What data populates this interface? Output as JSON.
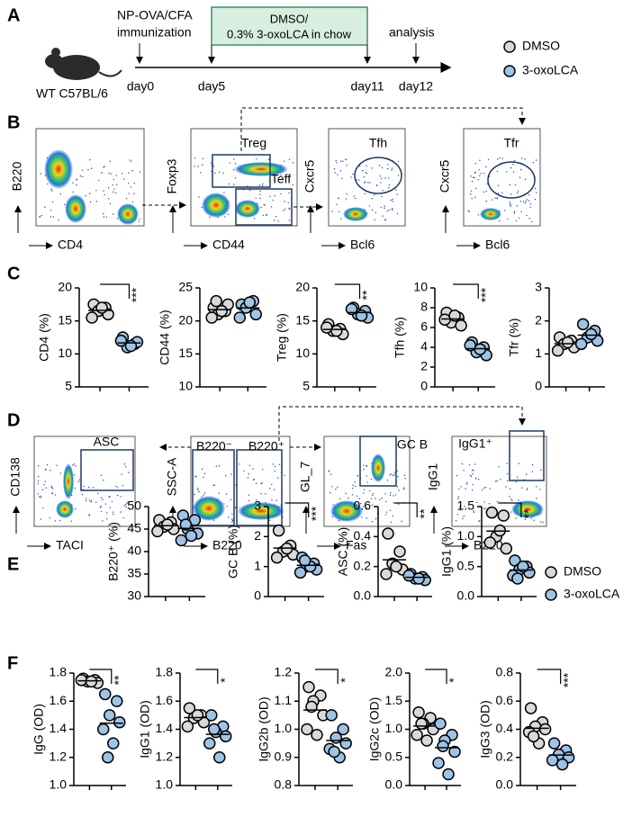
{
  "panel_labels": [
    "A",
    "B",
    "C",
    "D",
    "E",
    "F"
  ],
  "timeline": {
    "subject": "WT C57BL/6",
    "immunization": [
      "NP-OVA/CFA",
      "immunization"
    ],
    "treatment": [
      "DMSO/",
      "0.3% 3-oxoLCA in chow"
    ],
    "analysis": "analysis",
    "days": [
      "day0",
      "day5",
      "day11",
      "day12"
    ]
  },
  "legend": [
    {
      "name": "DMSO",
      "color": "#d9d9d9"
    },
    {
      "name": "3-oxoLCA",
      "color": "#9dc3e6"
    }
  ],
  "flow_b": [
    {
      "x_label": "CD4",
      "y_label": "B220"
    },
    {
      "x_label": "CD44",
      "y_label": "Foxp3",
      "gates": [
        "Treg",
        "Teff"
      ]
    },
    {
      "x_label": "Bcl6",
      "y_label": "Cxcr5",
      "gates": [
        "Tfh"
      ]
    },
    {
      "x_label": "Bcl6",
      "y_label": "Cxcr5",
      "gates": [
        "Tfr"
      ]
    }
  ],
  "flow_d": [
    {
      "x_label": "TACI",
      "y_label": "CD138",
      "gates": [
        "ASC"
      ]
    },
    {
      "x_label": "B220",
      "y_label": "SSC-A",
      "gates": [
        "B220⁻",
        "B220⁺"
      ]
    },
    {
      "x_label": "Fas",
      "y_label": "GL_7",
      "gates": [
        "GC B"
      ]
    },
    {
      "x_label": "B220",
      "y_label": "IgG1",
      "gates": [
        "IgG1⁺"
      ]
    }
  ],
  "chart_data": [
    {
      "type": "strip",
      "ylabel": "CD4 (%)",
      "ylim": [
        5,
        20
      ],
      "yticks": [
        5,
        10,
        15,
        20
      ],
      "significance": "***",
      "series": [
        {
          "color": "#d9d9d9",
          "values": [
            17.5,
            17,
            16.5,
            16,
            15.5,
            17
          ]
        },
        {
          "color": "#9dc3e6",
          "values": [
            12.5,
            11.5,
            11,
            11.8,
            12,
            11.2
          ]
        }
      ]
    },
    {
      "type": "strip",
      "ylabel": "CD44 (%)",
      "ylim": [
        10,
        25
      ],
      "yticks": [
        10,
        15,
        20,
        25
      ],
      "series": [
        {
          "color": "#d9d9d9",
          "values": [
            22,
            21.5,
            21,
            22.5,
            20.5,
            21.5,
            23
          ]
        },
        {
          "color": "#9dc3e6",
          "values": [
            22.5,
            23,
            22,
            21,
            20.5,
            22.8
          ]
        }
      ]
    },
    {
      "type": "strip",
      "ylabel": "Treg (%)",
      "ylim": [
        5,
        20
      ],
      "yticks": [
        5,
        10,
        15,
        20
      ],
      "significance": "**",
      "series": [
        {
          "color": "#d9d9d9",
          "values": [
            14.5,
            13.8,
            13.5,
            13,
            14,
            13.5
          ]
        },
        {
          "color": "#9dc3e6",
          "values": [
            17,
            16.5,
            16,
            15.5,
            16.8,
            15.8
          ]
        }
      ]
    },
    {
      "type": "strip",
      "ylabel": "Tfh (%)",
      "ylim": [
        0,
        10
      ],
      "yticks": [
        0,
        2,
        4,
        6,
        8,
        10
      ],
      "significance": "***",
      "series": [
        {
          "color": "#d9d9d9",
          "values": [
            7.5,
            7,
            6.5,
            6.2,
            6.8,
            7.2
          ]
        },
        {
          "color": "#9dc3e6",
          "values": [
            4.5,
            4,
            3.5,
            3.2,
            4.2,
            3.8
          ]
        }
      ]
    },
    {
      "type": "strip",
      "ylabel": "Tfr (%)",
      "ylim": [
        0,
        3
      ],
      "yticks": [
        0,
        1,
        2,
        3
      ],
      "series": [
        {
          "color": "#d9d9d9",
          "values": [
            1.5,
            1.4,
            1.3,
            1.2,
            1.1,
            1.35
          ]
        },
        {
          "color": "#9dc3e6",
          "values": [
            1.9,
            1.7,
            1.5,
            1.4,
            1.3,
            1.6
          ]
        }
      ]
    },
    {
      "type": "strip",
      "ylabel": "B220⁺ (%)",
      "ylim": [
        30,
        50
      ],
      "yticks": [
        30,
        35,
        40,
        45,
        50
      ],
      "series": [
        {
          "color": "#d9d9d9",
          "values": [
            47,
            46.5,
            45.5,
            45,
            44.5,
            46
          ]
        },
        {
          "color": "#9dc3e6",
          "values": [
            48,
            47,
            45,
            44,
            42.5,
            43.5,
            46
          ]
        }
      ]
    },
    {
      "type": "strip",
      "ylabel": "GC B (%)",
      "ylim": [
        0,
        3
      ],
      "yticks": [
        0,
        1,
        2,
        3
      ],
      "significance": "***",
      "series": [
        {
          "color": "#d9d9d9",
          "values": [
            2.2,
            1.7,
            1.5,
            1.4,
            1.3,
            1.6
          ]
        },
        {
          "color": "#9dc3e6",
          "values": [
            1.3,
            1.1,
            1.0,
            0.9,
            0.8,
            1.0,
            1.2
          ]
        }
      ]
    },
    {
      "type": "strip",
      "ylabel": "ASC (%)",
      "ylim": [
        0,
        0.6
      ],
      "yticks": [
        {
          "value": 0,
          "label": "0.0"
        },
        0.2,
        0.4,
        0.6
      ],
      "significance": "**",
      "series": [
        {
          "color": "#d9d9d9",
          "values": [
            0.42,
            0.3,
            0.22,
            0.18,
            0.15,
            0.2
          ]
        },
        {
          "color": "#9dc3e6",
          "values": [
            0.15,
            0.13,
            0.12,
            0.11,
            0.14,
            0.12
          ]
        }
      ]
    },
    {
      "type": "strip",
      "ylabel": "IgG1 (%)",
      "ylim": [
        0,
        1.5
      ],
      "yticks": [
        {
          "value": 0,
          "label": "0.0"
        },
        0.5,
        {
          "value": 1,
          "label": "1.0"
        },
        1.5
      ],
      "significance": "**",
      "series": [
        {
          "color": "#d9d9d9",
          "values": [
            1.4,
            1.35,
            1.0,
            0.8,
            0.9,
            1.1
          ]
        },
        {
          "color": "#9dc3e6",
          "values": [
            0.6,
            0.5,
            0.45,
            0.4,
            0.35,
            0.5,
            0.3
          ]
        }
      ]
    },
    {
      "type": "strip",
      "ylabel": "IgG (OD)",
      "ylim": [
        1,
        1.8
      ],
      "yticks": [
        {
          "value": 1,
          "label": "1.0"
        },
        1.2,
        1.4,
        1.6,
        1.8
      ],
      "significance": "**",
      "series": [
        {
          "color": "#d9d9d9",
          "values": [
            1.76,
            1.75,
            1.74,
            1.73,
            1.75,
            1.74
          ]
        },
        {
          "color": "#9dc3e6",
          "values": [
            1.65,
            1.6,
            1.5,
            1.45,
            1.4,
            1.3,
            1.2
          ]
        }
      ]
    },
    {
      "type": "strip",
      "ylabel": "IgG1 (OD)",
      "ylim": [
        1,
        1.8
      ],
      "yticks": [
        {
          "value": 1,
          "label": "1.0"
        },
        1.2,
        1.4,
        1.6,
        1.8
      ],
      "significance": "*",
      "series": [
        {
          "color": "#d9d9d9",
          "values": [
            1.55,
            1.5,
            1.48,
            1.45,
            1.42,
            1.5
          ]
        },
        {
          "color": "#9dc3e6",
          "values": [
            1.5,
            1.42,
            1.38,
            1.35,
            1.3,
            1.2,
            1.4
          ]
        }
      ]
    },
    {
      "type": "strip",
      "ylabel": "IgG2b (OD)",
      "ylim": [
        0.8,
        1.2
      ],
      "yticks": [
        0.8,
        0.9,
        {
          "value": 1,
          "label": "1.0"
        },
        1.1,
        1.2
      ],
      "significance": "*",
      "series": [
        {
          "color": "#d9d9d9",
          "values": [
            1.15,
            1.12,
            1.1,
            1.05,
            1.0,
            0.98,
            1.08
          ]
        },
        {
          "color": "#9dc3e6",
          "values": [
            1.05,
            1.0,
            0.97,
            0.95,
            0.93,
            0.9,
            0.92
          ]
        }
      ]
    },
    {
      "type": "strip",
      "ylabel": "IgG2c (OD)",
      "ylim": [
        0,
        2
      ],
      "yticks": [
        {
          "value": 0,
          "label": "0.0"
        },
        0.5,
        {
          "value": 1,
          "label": "1.0"
        },
        1.5,
        {
          "value": 2,
          "label": "2.0"
        }
      ],
      "significance": "*",
      "series": [
        {
          "color": "#d9d9d9",
          "values": [
            1.3,
            1.2,
            1.1,
            1.0,
            0.9,
            0.8,
            1.1
          ]
        },
        {
          "color": "#9dc3e6",
          "values": [
            1.1,
            0.9,
            0.8,
            0.6,
            0.4,
            0.2,
            0.7
          ]
        }
      ]
    },
    {
      "type": "strip",
      "ylabel": "IgG3 (OD)",
      "ylim": [
        0,
        0.8
      ],
      "yticks": [
        {
          "value": 0,
          "label": "0.0"
        },
        0.2,
        0.4,
        0.6,
        0.8
      ],
      "significance": "***",
      "series": [
        {
          "color": "#d9d9d9",
          "values": [
            0.55,
            0.45,
            0.42,
            0.4,
            0.38,
            0.3,
            0.35
          ]
        },
        {
          "color": "#9dc3e6",
          "values": [
            0.3,
            0.25,
            0.22,
            0.2,
            0.18,
            0.15
          ]
        }
      ]
    }
  ]
}
